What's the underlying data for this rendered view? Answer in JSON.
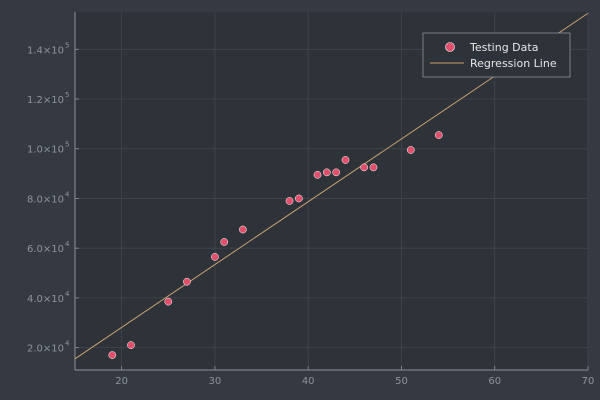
{
  "chart_data": {
    "type": "scatter",
    "title": "",
    "xlabel": "",
    "ylabel": "",
    "xlim": [
      15,
      70
    ],
    "ylim": [
      11000,
      155000
    ],
    "grid": true,
    "legend_position": "top-right",
    "x_ticks": [
      {
        "value": 20,
        "label": "20"
      },
      {
        "value": 30,
        "label": "30"
      },
      {
        "value": 40,
        "label": "40"
      },
      {
        "value": 50,
        "label": "50"
      },
      {
        "value": 60,
        "label": "60"
      },
      {
        "value": 70,
        "label": "70"
      }
    ],
    "y_ticks": [
      {
        "value": 20000,
        "mantissa": "2.0×10",
        "exp": "4"
      },
      {
        "value": 40000,
        "mantissa": "4.0×10",
        "exp": "4"
      },
      {
        "value": 60000,
        "mantissa": "6.0×10",
        "exp": "4"
      },
      {
        "value": 80000,
        "mantissa": "8.0×10",
        "exp": "4"
      },
      {
        "value": 100000,
        "mantissa": "1.0×10",
        "exp": "5"
      },
      {
        "value": 120000,
        "mantissa": "1.2×10",
        "exp": "5"
      },
      {
        "value": 140000,
        "mantissa": "1.4×10",
        "exp": "5"
      }
    ],
    "series": [
      {
        "name": "Testing Data",
        "kind": "scatter",
        "color": "#e0506b",
        "points": [
          {
            "x": 19,
            "y": 17000
          },
          {
            "x": 21,
            "y": 21000
          },
          {
            "x": 25,
            "y": 38500
          },
          {
            "x": 27,
            "y": 46500
          },
          {
            "x": 30,
            "y": 56500
          },
          {
            "x": 31,
            "y": 62500
          },
          {
            "x": 33,
            "y": 67500
          },
          {
            "x": 38,
            "y": 79000
          },
          {
            "x": 39,
            "y": 80000
          },
          {
            "x": 41,
            "y": 89500
          },
          {
            "x": 42,
            "y": 90500
          },
          {
            "x": 43,
            "y": 90500
          },
          {
            "x": 44,
            "y": 95500
          },
          {
            "x": 46,
            "y": 92500
          },
          {
            "x": 47,
            "y": 92500
          },
          {
            "x": 51,
            "y": 99500
          },
          {
            "x": 54,
            "y": 105500
          }
        ]
      },
      {
        "name": "Regression Line",
        "kind": "line",
        "color": "#c8a070",
        "points": [
          {
            "x": 15,
            "y": 15500
          },
          {
            "x": 70,
            "y": 154500
          }
        ]
      }
    ]
  }
}
